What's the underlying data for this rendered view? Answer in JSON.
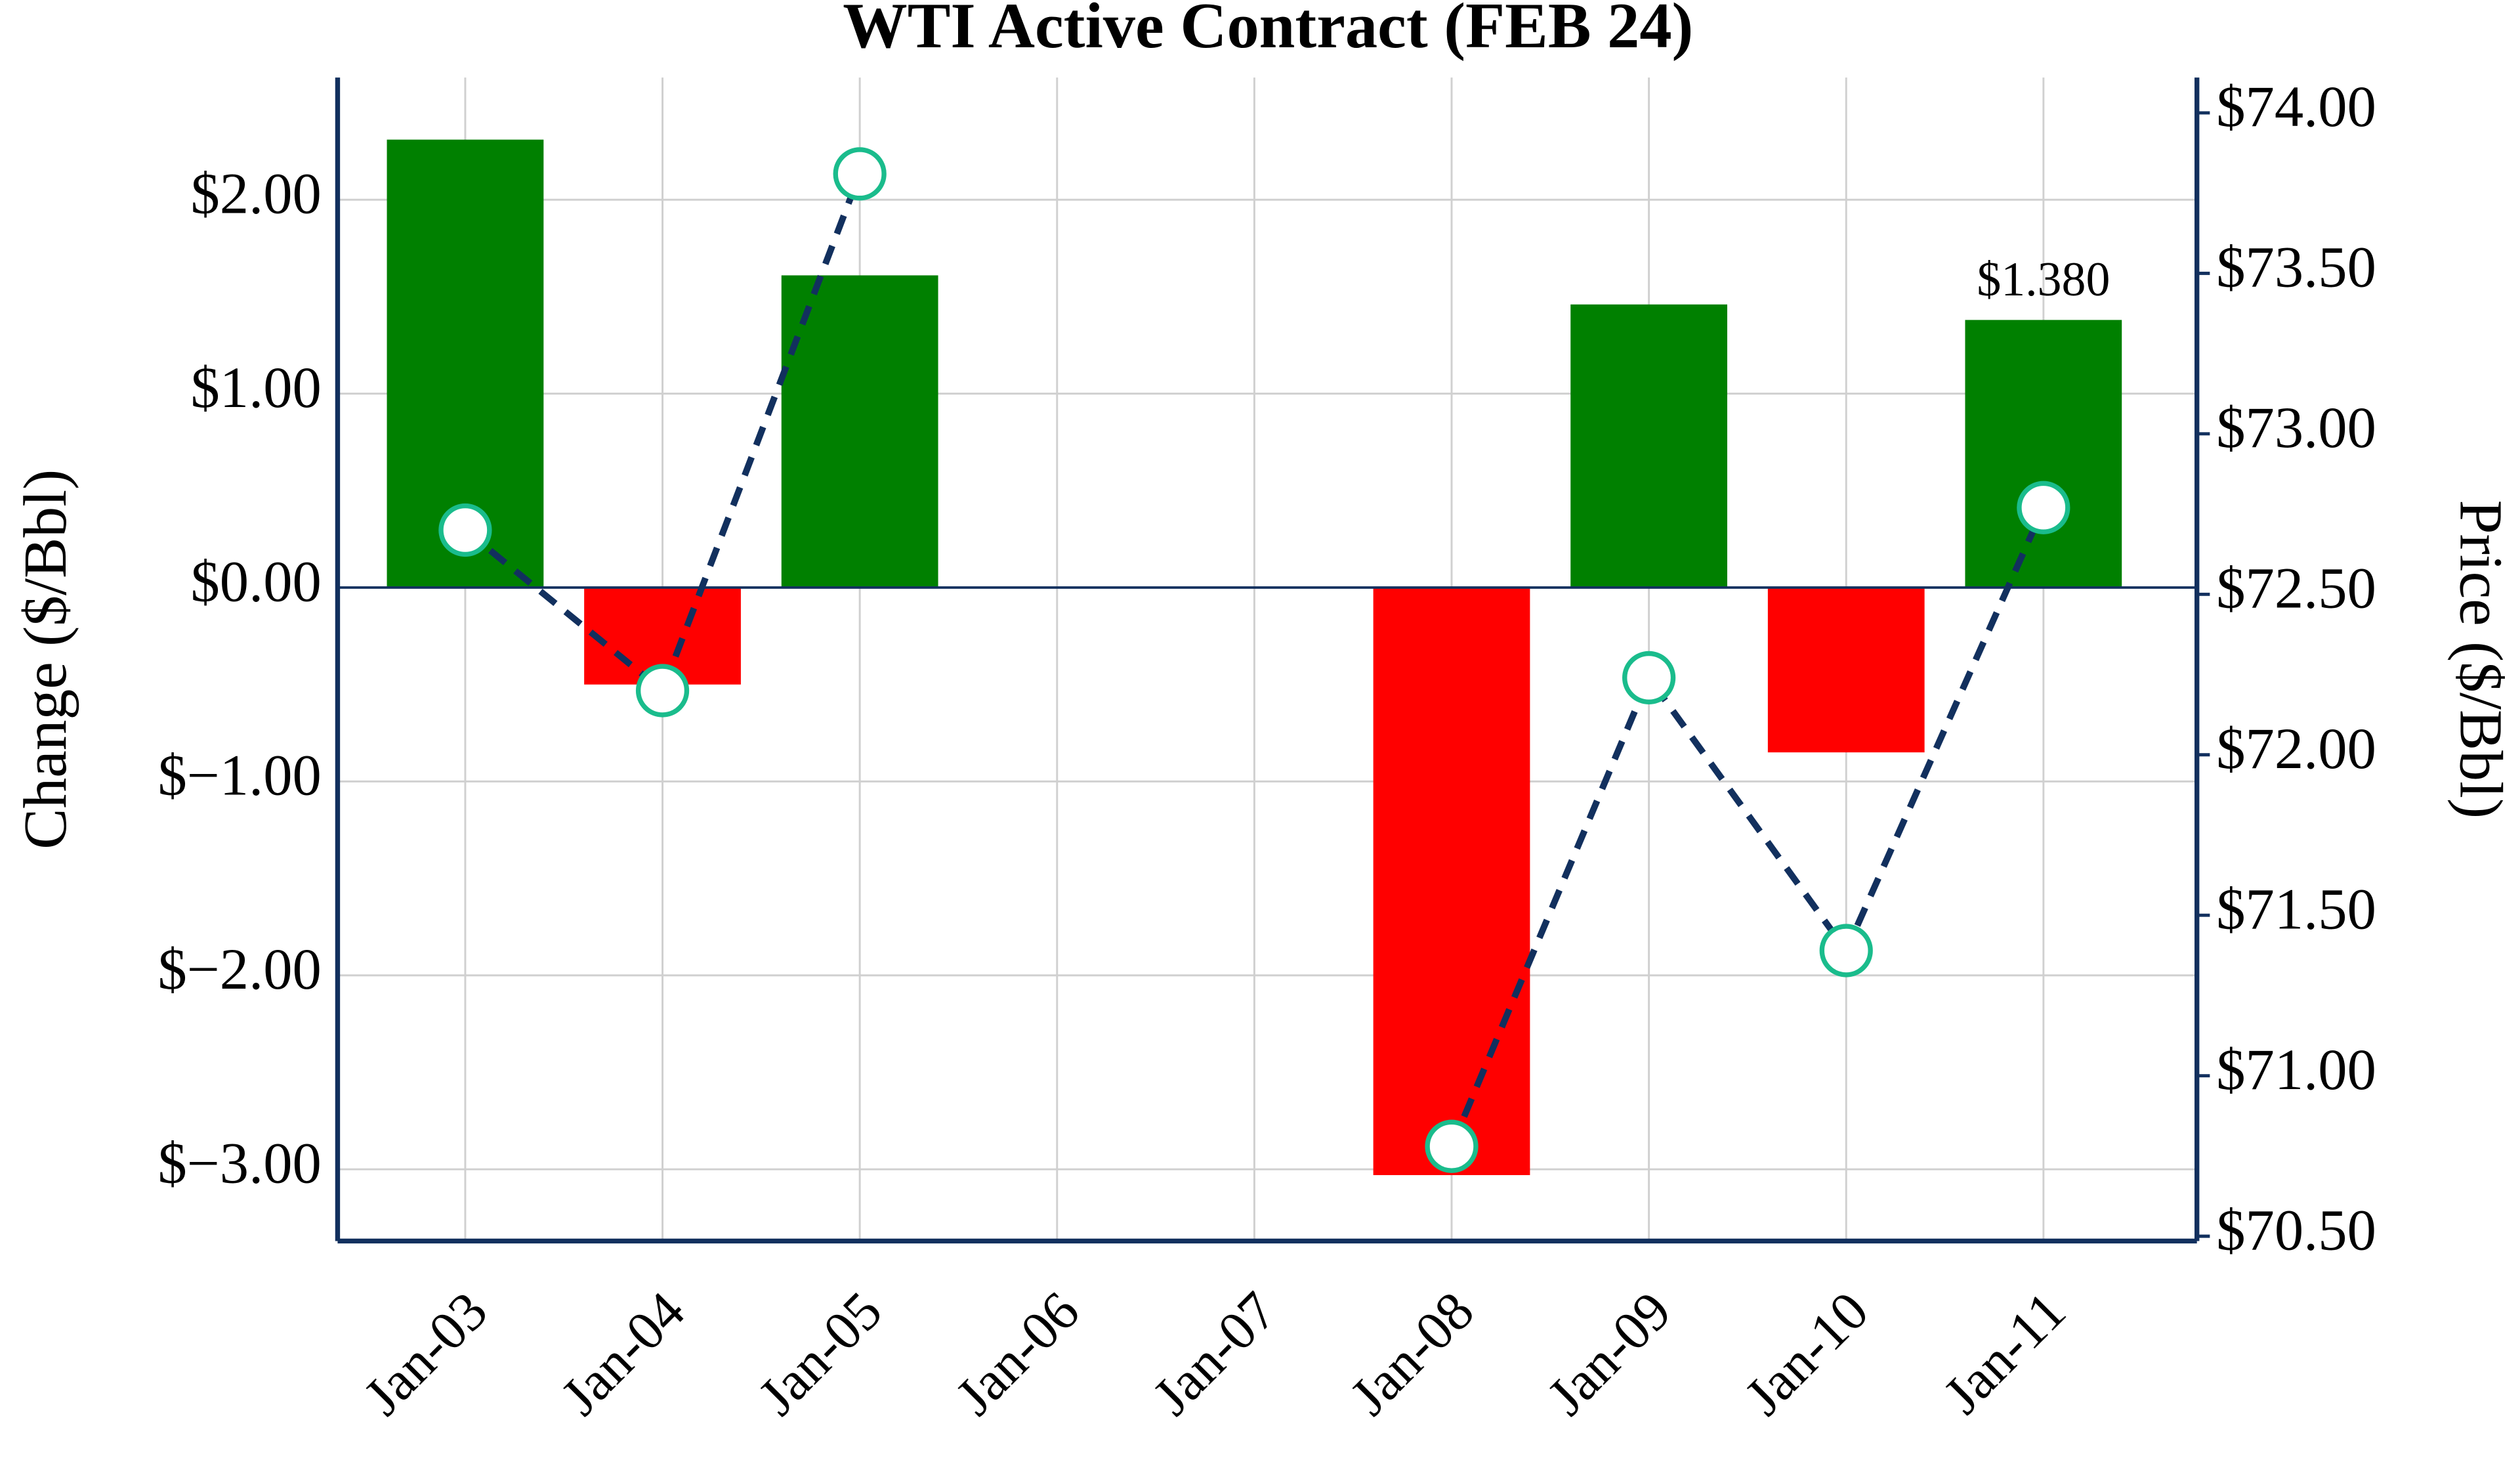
{
  "chart_data": {
    "type": "bar-line",
    "title": "WTI Active Contract (FEB 24)",
    "ylabel": "Change ($/Bbl)",
    "y2label": "Price ($/Bbl)",
    "categories": [
      "Jan-03",
      "Jan-04",
      "Jan-05",
      "Jan-06",
      "Jan-07",
      "Jan-08",
      "Jan-09",
      "Jan-10",
      "Jan-11"
    ],
    "series": [
      {
        "name": "Change",
        "type": "bar",
        "positive_color": "#008000",
        "negative_color": "#ff0000",
        "values": [
          2.31,
          -0.5,
          1.61,
          null,
          null,
          -3.03,
          1.46,
          -0.85,
          1.38
        ],
        "value_labels": [
          null,
          null,
          null,
          null,
          null,
          null,
          null,
          null,
          "$1.380"
        ]
      },
      {
        "name": "Price",
        "type": "line",
        "axis": "y2",
        "color": "#12305e",
        "marker_edge": "#1abc8c",
        "marker_fill": "#ffffff",
        "values": [
          72.7,
          72.2,
          73.81,
          null,
          null,
          70.78,
          72.24,
          71.39,
          72.77
        ]
      }
    ],
    "ylim": [
      -3.37,
      2.63
    ],
    "yticks": [
      {
        "value": -3,
        "label": "$−3.00"
      },
      {
        "value": -2,
        "label": "$−2.00"
      },
      {
        "value": -1,
        "label": "$−1.00"
      },
      {
        "value": 0,
        "label": "$0.00"
      },
      {
        "value": 1,
        "label": "$1.00"
      },
      {
        "value": 2,
        "label": "$2.00"
      }
    ],
    "y2lim": [
      70.485,
      74.11
    ],
    "y2ticks": [
      {
        "value": 70.5,
        "label": "$70.50"
      },
      {
        "value": 71,
        "label": "$71.00"
      },
      {
        "value": 71.5,
        "label": "$71.50"
      },
      {
        "value": 72,
        "label": "$72.00"
      },
      {
        "value": 72.5,
        "label": "$72.50"
      },
      {
        "value": 73,
        "label": "$73.00"
      },
      {
        "value": 73.5,
        "label": "$73.50"
      },
      {
        "value": 74,
        "label": "$74.00"
      }
    ],
    "grid": true
  }
}
